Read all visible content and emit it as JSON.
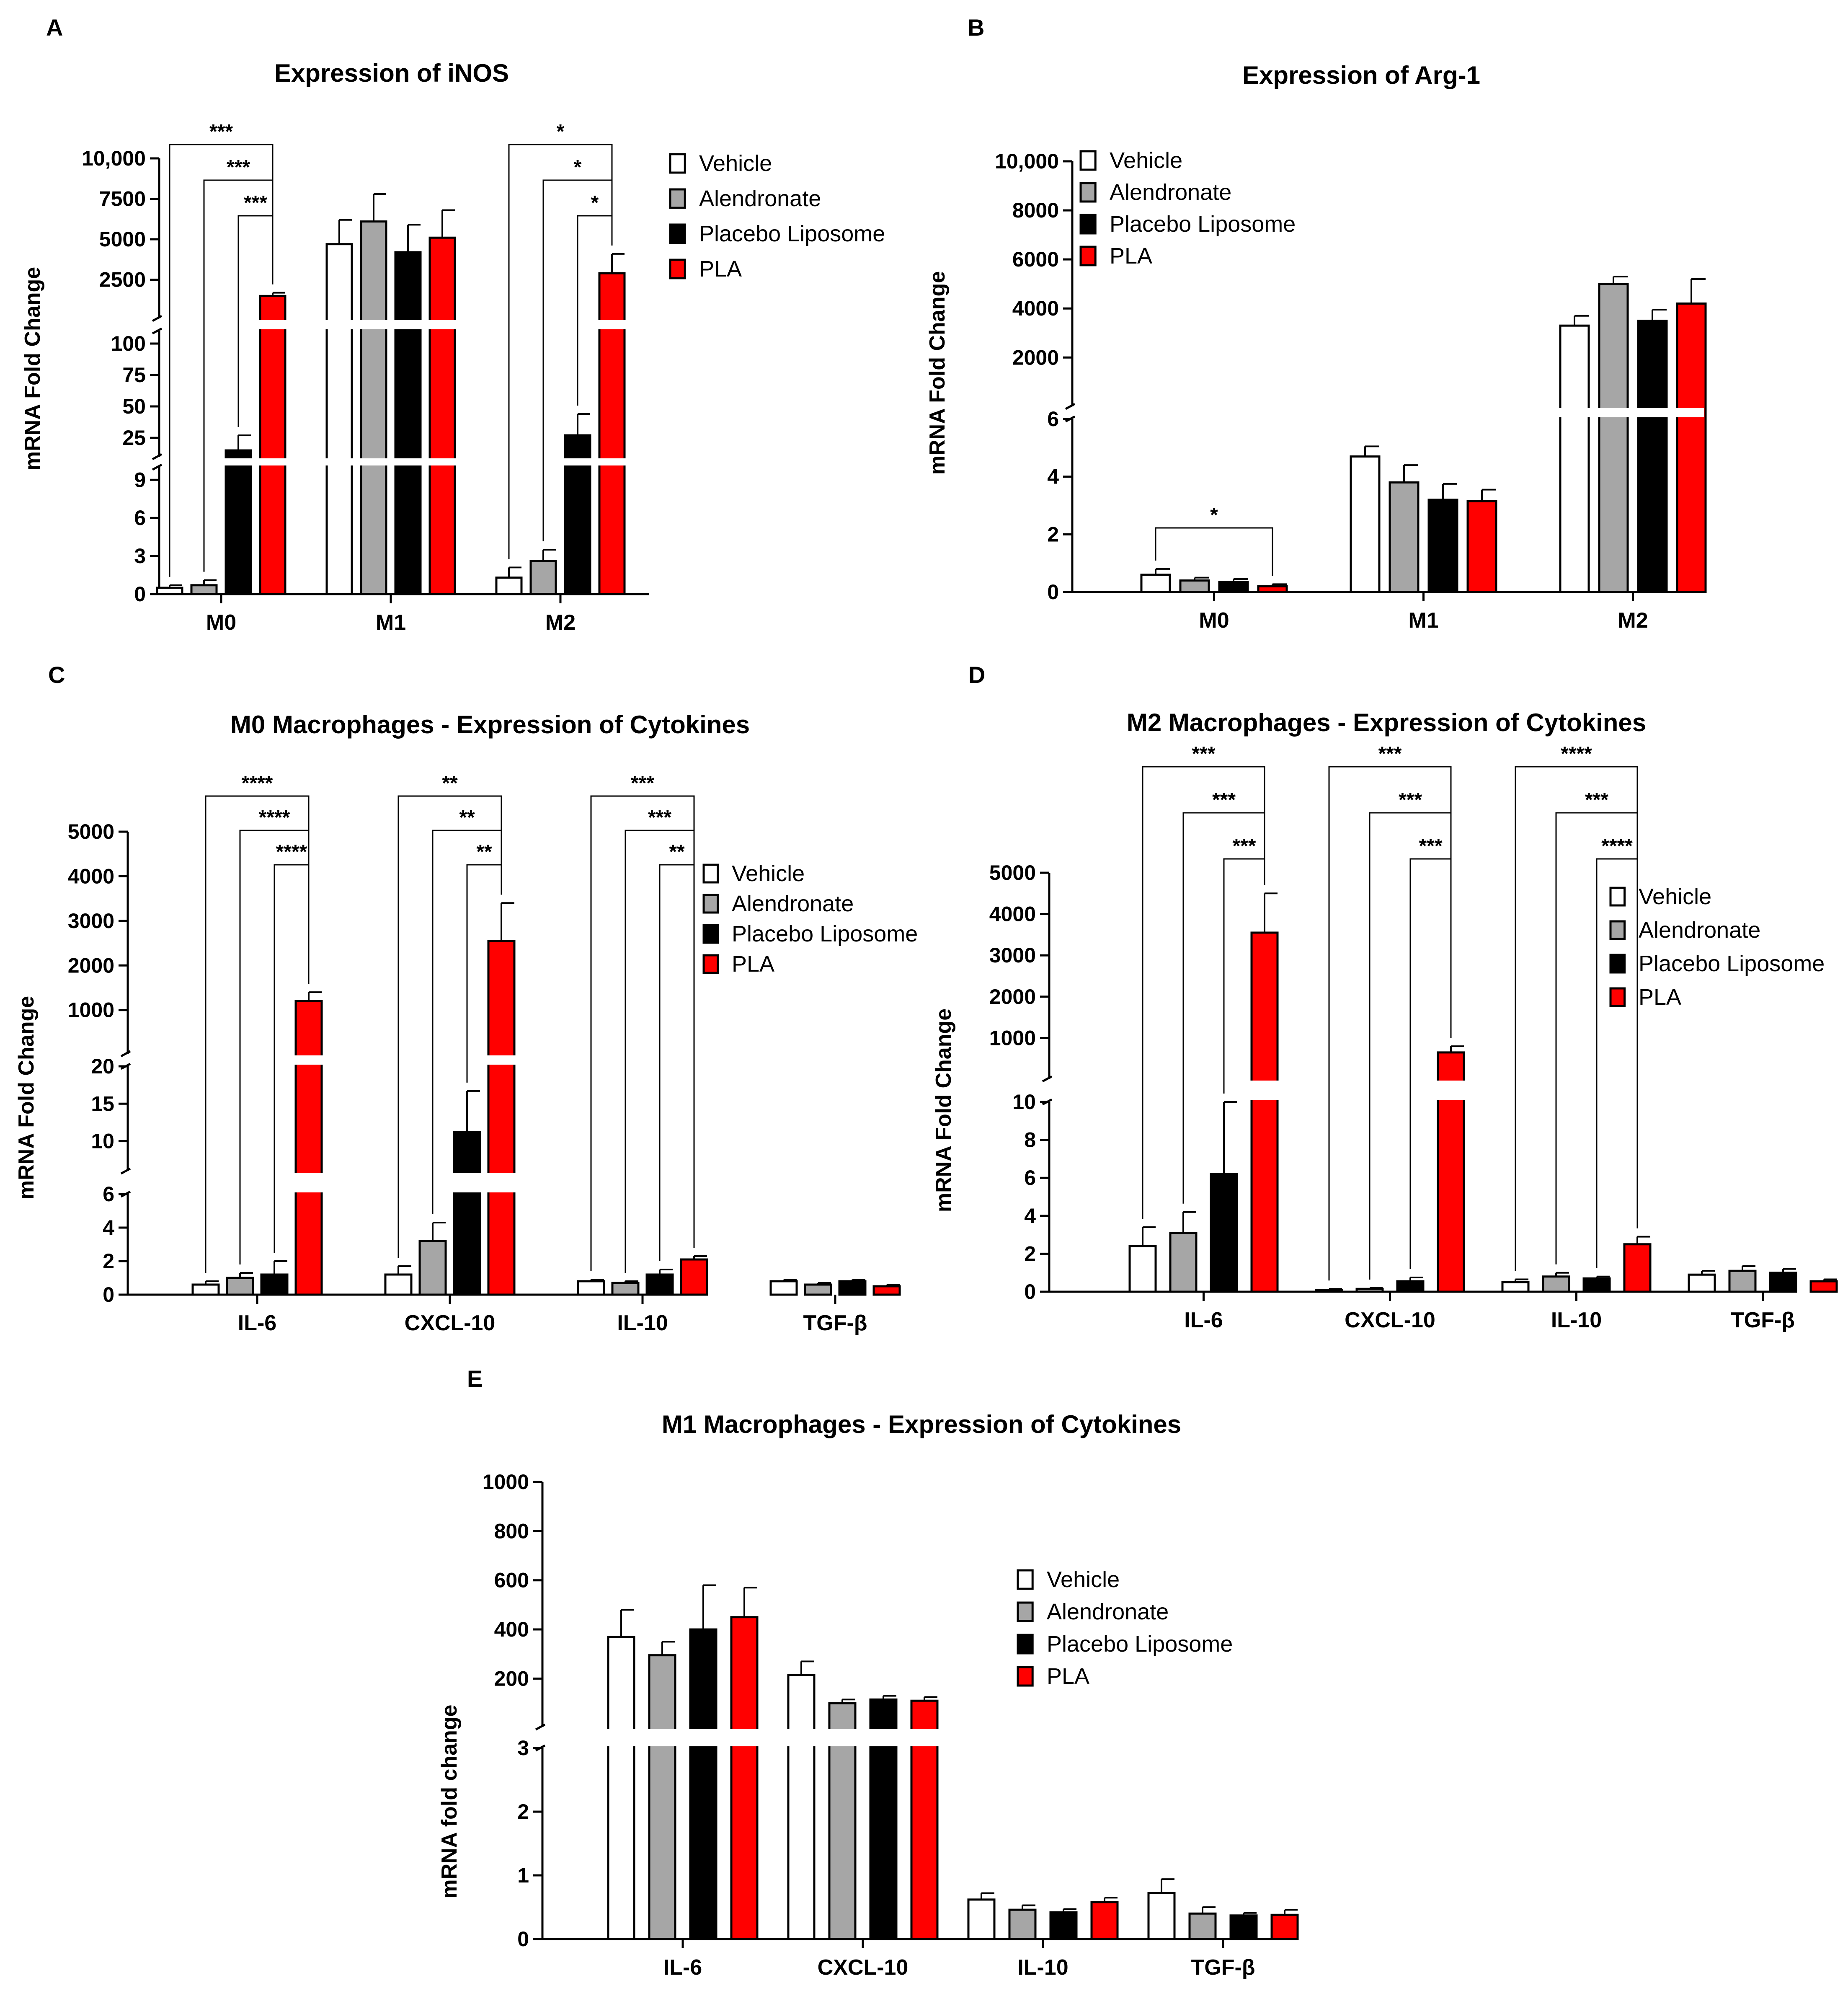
{
  "colors": {
    "Vehicle": "#ffffff",
    "Alendronate": "#a6a6a6",
    "Placebo Liposome": "#000000",
    "PLA": "#ff0000"
  },
  "chart_data": [
    {
      "panel": "A",
      "type": "bar",
      "title": "Expression of iNOS",
      "ylabel": "mRNA Fold Change",
      "xlabel": "",
      "legend_position": "top-right",
      "categories": [
        "M0",
        "M1",
        "M2"
      ],
      "axis_segments": [
        {
          "ylim": [
            0,
            10
          ],
          "ticks": [
            0,
            3,
            6,
            9
          ],
          "tick_labels": [
            "0",
            "3",
            "6",
            "9"
          ]
        },
        {
          "ylim": [
            10,
            110
          ],
          "ticks": [
            25,
            50,
            75,
            100
          ],
          "tick_labels": [
            "25",
            "50",
            "75",
            "100"
          ]
        },
        {
          "ylim": [
            110,
            10000
          ],
          "ticks": [
            2500,
            5000,
            7500,
            10000
          ],
          "tick_labels": [
            "2500",
            "5000",
            "7500",
            "10,000"
          ]
        }
      ],
      "series": [
        {
          "name": "Vehicle",
          "values": [
            0.5,
            4700,
            1.3
          ],
          "errors": [
            0.2,
            1500,
            0.8
          ]
        },
        {
          "name": "Alendronate",
          "values": [
            0.7,
            6100,
            2.6
          ],
          "errors": [
            0.4,
            1700,
            0.9
          ]
        },
        {
          "name": "Placebo Liposome",
          "values": [
            15,
            4200,
            27
          ],
          "errors": [
            12,
            1700,
            17
          ]
        },
        {
          "name": "PLA",
          "values": [
            1500,
            5100,
            2900
          ],
          "errors": [
            200,
            1700,
            1200
          ]
        }
      ],
      "significance": [
        {
          "category": 0,
          "from": 0,
          "to": 3,
          "label": "***"
        },
        {
          "category": 0,
          "from": 1,
          "to": 3,
          "label": "***"
        },
        {
          "category": 0,
          "from": 2,
          "to": 3,
          "label": "***"
        },
        {
          "category": 2,
          "from": 0,
          "to": 3,
          "label": "*"
        },
        {
          "category": 2,
          "from": 1,
          "to": 3,
          "label": "*"
        },
        {
          "category": 2,
          "from": 2,
          "to": 3,
          "label": "*"
        }
      ]
    },
    {
      "panel": "B",
      "type": "bar",
      "title": "Expression of Arg-1",
      "ylabel": "mRNA Fold Change",
      "xlabel": "",
      "legend_position": "top-left",
      "categories": [
        "M0",
        "M1",
        "M2"
      ],
      "axis_segments": [
        {
          "ylim": [
            0,
            6
          ],
          "ticks": [
            0,
            2,
            4,
            6
          ],
          "tick_labels": [
            "0",
            "2",
            "4",
            "6"
          ]
        },
        {
          "ylim": [
            6,
            10000
          ],
          "ticks": [
            2000,
            4000,
            6000,
            8000,
            10000
          ],
          "tick_labels": [
            "2000",
            "4000",
            "6000",
            "8000",
            "10,000"
          ]
        }
      ],
      "series": [
        {
          "name": "Vehicle",
          "values": [
            0.6,
            4.7,
            3300
          ],
          "errors": [
            0.2,
            0.35,
            400
          ]
        },
        {
          "name": "Alendronate",
          "values": [
            0.4,
            3.8,
            5000
          ],
          "errors": [
            0.1,
            0.6,
            300
          ]
        },
        {
          "name": "Placebo Liposome",
          "values": [
            0.35,
            3.2,
            3500
          ],
          "errors": [
            0.1,
            0.55,
            450
          ]
        },
        {
          "name": "PLA",
          "values": [
            0.2,
            3.15,
            4200
          ],
          "errors": [
            0.07,
            0.4,
            1000
          ]
        }
      ],
      "significance": [
        {
          "category": 0,
          "from": 0,
          "to": 3,
          "label": "*"
        }
      ]
    },
    {
      "panel": "C",
      "type": "bar",
      "title": "M0 Macrophages - Expression of Cytokines",
      "ylabel": "mRNA Fold Change",
      "xlabel": "",
      "legend_position": "top-right",
      "categories": [
        "IL-6",
        "CXCL-10",
        "IL-10",
        "TGF-β"
      ],
      "axis_segments": [
        {
          "ylim": [
            0,
            6
          ],
          "ticks": [
            0,
            2,
            4,
            6
          ],
          "tick_labels": [
            "0",
            "2",
            "4",
            "6"
          ]
        },
        {
          "ylim": [
            6,
            20
          ],
          "ticks": [
            10,
            15,
            20
          ],
          "tick_labels": [
            "10",
            "15",
            "20"
          ]
        },
        {
          "ylim": [
            20,
            5000
          ],
          "ticks": [
            1000,
            2000,
            3000,
            4000,
            5000
          ],
          "tick_labels": [
            "1000",
            "2000",
            "3000",
            "4000",
            "5000"
          ]
        }
      ],
      "series": [
        {
          "name": "Vehicle",
          "values": [
            0.6,
            1.2,
            0.8,
            0.8
          ],
          "errors": [
            0.2,
            0.5,
            0.1,
            0.1
          ]
        },
        {
          "name": "Alendronate",
          "values": [
            1.0,
            3.2,
            0.7,
            0.6
          ],
          "errors": [
            0.3,
            1.1,
            0.1,
            0.1
          ]
        },
        {
          "name": "Placebo Liposome",
          "values": [
            1.2,
            11.2,
            1.2,
            0.8
          ],
          "errors": [
            0.8,
            5.5,
            0.3,
            0.1
          ]
        },
        {
          "name": "PLA",
          "values": [
            1200,
            2550,
            2.1,
            0.5
          ],
          "errors": [
            200,
            850,
            0.2,
            0.1
          ]
        }
      ],
      "significance": [
        {
          "category": 0,
          "from": 0,
          "to": 3,
          "label": "****"
        },
        {
          "category": 0,
          "from": 1,
          "to": 3,
          "label": "****"
        },
        {
          "category": 0,
          "from": 2,
          "to": 3,
          "label": "****"
        },
        {
          "category": 1,
          "from": 0,
          "to": 3,
          "label": "**"
        },
        {
          "category": 1,
          "from": 1,
          "to": 3,
          "label": "**"
        },
        {
          "category": 1,
          "from": 2,
          "to": 3,
          "label": "**"
        },
        {
          "category": 2,
          "from": 0,
          "to": 3,
          "label": "***"
        },
        {
          "category": 2,
          "from": 1,
          "to": 3,
          "label": "***"
        },
        {
          "category": 2,
          "from": 2,
          "to": 3,
          "label": "**"
        }
      ]
    },
    {
      "panel": "D",
      "type": "bar",
      "title": "M2 Macrophages - Expression of Cytokines",
      "ylabel": "mRNA Fold Change",
      "xlabel": "",
      "legend_position": "top-right",
      "categories": [
        "IL-6",
        "CXCL-10",
        "IL-10",
        "TGF-β"
      ],
      "axis_segments": [
        {
          "ylim": [
            0,
            10
          ],
          "ticks": [
            0,
            2,
            4,
            6,
            8,
            10
          ],
          "tick_labels": [
            "0",
            "2",
            "4",
            "6",
            "8",
            "10"
          ]
        },
        {
          "ylim": [
            10,
            5000
          ],
          "ticks": [
            1000,
            2000,
            3000,
            4000,
            5000
          ],
          "tick_labels": [
            "1000",
            "2000",
            "3000",
            "4000",
            "5000"
          ]
        }
      ],
      "series": [
        {
          "name": "Vehicle",
          "values": [
            2.4,
            0.1,
            0.5,
            0.9
          ],
          "errors": [
            1.0,
            0.05,
            0.15,
            0.2
          ]
        },
        {
          "name": "Alendronate",
          "values": [
            3.1,
            0.15,
            0.8,
            1.1
          ],
          "errors": [
            1.1,
            0.05,
            0.2,
            0.25
          ]
        },
        {
          "name": "Placebo Liposome",
          "values": [
            6.2,
            0.55,
            0.7,
            1.0
          ],
          "errors": [
            3.8,
            0.2,
            0.1,
            0.2
          ]
        },
        {
          "name": "PLA",
          "values": [
            3550,
            650,
            2.5,
            0.55
          ],
          "errors": [
            950,
            150,
            0.4,
            0.1
          ]
        }
      ],
      "significance": [
        {
          "category": 0,
          "from": 0,
          "to": 3,
          "label": "***"
        },
        {
          "category": 0,
          "from": 1,
          "to": 3,
          "label": "***"
        },
        {
          "category": 0,
          "from": 2,
          "to": 3,
          "label": "***"
        },
        {
          "category": 1,
          "from": 0,
          "to": 3,
          "label": "***"
        },
        {
          "category": 1,
          "from": 1,
          "to": 3,
          "label": "***"
        },
        {
          "category": 1,
          "from": 2,
          "to": 3,
          "label": "***"
        },
        {
          "category": 2,
          "from": 0,
          "to": 3,
          "label": "****"
        },
        {
          "category": 2,
          "from": 1,
          "to": 3,
          "label": "***"
        },
        {
          "category": 2,
          "from": 2,
          "to": 3,
          "label": "****"
        }
      ]
    },
    {
      "panel": "E",
      "type": "bar",
      "title": "M1 Macrophages - Expression of Cytokines",
      "ylabel": "mRNA fold change",
      "xlabel": "",
      "legend_position": "top-right",
      "categories": [
        "IL-6",
        "CXCL-10",
        "IL-10",
        "TGF-β"
      ],
      "axis_segments": [
        {
          "ylim": [
            0,
            3
          ],
          "ticks": [
            0,
            1,
            2,
            3
          ],
          "tick_labels": [
            "0",
            "1",
            "2",
            "3"
          ]
        },
        {
          "ylim": [
            3,
            1000
          ],
          "ticks": [
            200,
            400,
            600,
            800,
            1000
          ],
          "tick_labels": [
            "200",
            "400",
            "600",
            "800",
            "1000"
          ]
        }
      ],
      "series": [
        {
          "name": "Vehicle",
          "values": [
            370,
            215,
            0.62,
            0.72
          ],
          "errors": [
            110,
            55,
            0.1,
            0.22
          ]
        },
        {
          "name": "Alendronate",
          "values": [
            295,
            100,
            0.46,
            0.4
          ],
          "errors": [
            55,
            15,
            0.07,
            0.1
          ]
        },
        {
          "name": "Placebo Liposome",
          "values": [
            400,
            115,
            0.42,
            0.37
          ],
          "errors": [
            180,
            15,
            0.05,
            0.04
          ]
        },
        {
          "name": "PLA",
          "values": [
            450,
            110,
            0.58,
            0.38
          ],
          "errors": [
            120,
            15,
            0.07,
            0.08
          ]
        }
      ],
      "significance": []
    }
  ]
}
